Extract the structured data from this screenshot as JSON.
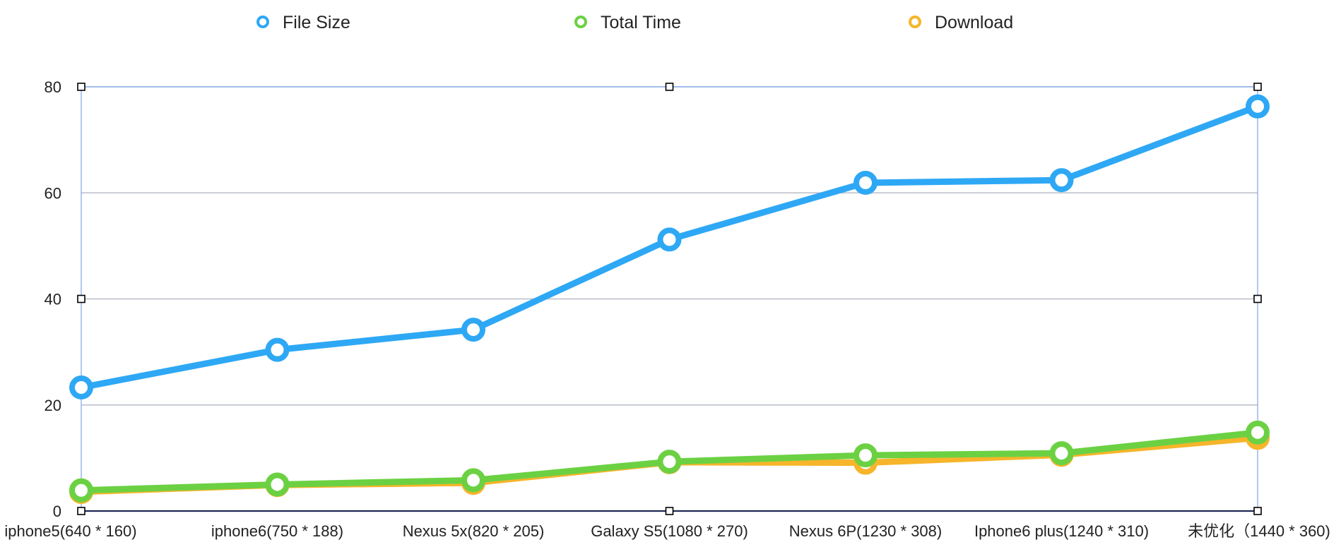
{
  "chart_data": {
    "type": "line",
    "categories": [
      "iphone5(640 * 160)",
      "iphone6(750 * 188)",
      "Nexus 5x(820 * 205)",
      "Galaxy S5(1080 * 270)",
      "Nexus 6P(1230 * 308)",
      "Iphone6 plus(1240 * 310)",
      "未优化（1440 * 360)"
    ],
    "series": [
      {
        "name": "File Size",
        "color": "#2ea8f5",
        "values": [
          23.3,
          30.4,
          34.2,
          51.2,
          61.9,
          62.4,
          76.3
        ]
      },
      {
        "name": "Total Time",
        "color": "#6bd143",
        "values": [
          3.9,
          5.0,
          5.8,
          9.3,
          10.5,
          10.9,
          14.8
        ]
      },
      {
        "name": "Download",
        "color": "#f6b52a",
        "values": [
          3.6,
          4.9,
          5.3,
          9.2,
          9.1,
          10.6,
          13.8
        ]
      }
    ],
    "yticks": [
      "0",
      "20",
      "40",
      "60",
      "80"
    ],
    "ylim": [
      0,
      80
    ],
    "grid": true,
    "legend": "top",
    "title": "",
    "xlabel": "",
    "ylabel": ""
  }
}
